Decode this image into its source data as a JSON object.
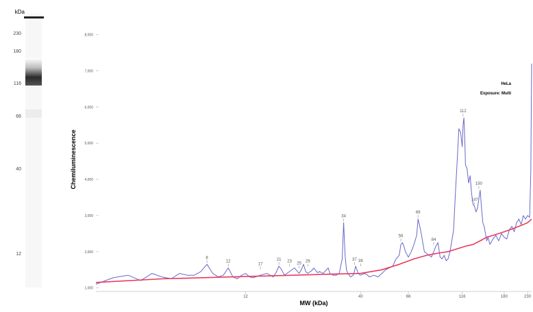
{
  "lane": {
    "unit": "kDa",
    "markers": [
      {
        "label": "230",
        "kda": 230
      },
      {
        "label": "180",
        "kda": 180
      },
      {
        "label": "116",
        "kda": 116
      },
      {
        "label": "66",
        "kda": 66
      },
      {
        "label": "40",
        "kda": 40
      },
      {
        "label": "12",
        "kda": 12
      }
    ]
  },
  "chart_data": {
    "type": "line",
    "title": "",
    "xlabel": "MW (kDa)",
    "ylabel": "Chemiluminescence",
    "x_scale": "log",
    "xlim": [
      2.5,
      240
    ],
    "ylim": [
      900,
      8200
    ],
    "x_ticks": [
      {
        "label": "12",
        "value": 12
      },
      {
        "label": "40",
        "value": 40
      },
      {
        "label": "66",
        "value": 66
      },
      {
        "label": "116",
        "value": 116
      },
      {
        "label": "180",
        "value": 180
      },
      {
        "label": "230",
        "value": 230
      }
    ],
    "y_ticks": [
      {
        "label": "1,000",
        "value": 1000
      },
      {
        "label": "2,000",
        "value": 2000
      },
      {
        "label": "3,000",
        "value": 3000
      },
      {
        "label": "4,000",
        "value": 4000
      },
      {
        "label": "5,000",
        "value": 5000
      },
      {
        "label": "6,000",
        "value": 6000
      },
      {
        "label": "7,000",
        "value": 7000
      },
      {
        "label": "8,000",
        "value": 8000
      }
    ],
    "legend": {
      "sample": "HeLa",
      "exposure": "Exposure: Multi"
    },
    "series": [
      {
        "color": "#6666cc",
        "x": [
          2.5,
          3,
          3.5,
          4,
          4.5,
          5,
          5.5,
          6,
          6.5,
          7,
          7.5,
          8,
          8.5,
          9,
          9.5,
          10,
          10.5,
          11,
          11.5,
          12,
          12.5,
          13,
          14,
          15,
          16,
          16.5,
          17,
          17.5,
          18,
          19,
          20,
          21,
          21.5,
          22,
          22.5,
          23,
          24,
          24.5,
          25,
          25.5,
          26,
          27,
          28,
          28.5,
          29,
          30,
          31,
          32,
          33,
          33.5,
          34,
          34.5,
          35,
          36,
          37,
          37.5,
          38,
          39,
          40,
          42,
          44,
          46,
          48,
          50,
          52,
          54,
          56,
          58,
          60,
          61,
          62,
          63,
          64,
          66,
          68,
          70,
          72,
          73,
          74,
          75,
          76,
          77,
          78,
          80,
          82,
          84,
          86,
          88,
          90,
          92,
          94,
          96,
          98,
          100,
          102,
          104,
          106,
          108,
          110,
          112,
          114,
          115,
          116,
          117,
          118,
          119,
          120,
          122,
          124,
          126,
          128,
          130,
          132,
          134,
          136,
          138,
          140,
          142,
          144,
          146,
          148,
          150,
          152,
          155,
          160,
          165,
          170,
          175,
          180,
          185,
          190,
          195,
          200,
          205,
          210,
          215,
          220,
          225,
          230,
          235,
          238,
          240
        ],
        "y": [
          1100,
          1280,
          1350,
          1200,
          1400,
          1300,
          1250,
          1400,
          1350,
          1350,
          1450,
          1650,
          1400,
          1300,
          1350,
          1550,
          1300,
          1250,
          1350,
          1400,
          1300,
          1280,
          1350,
          1400,
          1300,
          1420,
          1600,
          1500,
          1350,
          1450,
          1550,
          1400,
          1500,
          1650,
          1450,
          1400,
          1480,
          1550,
          1480,
          1420,
          1450,
          1400,
          1500,
          1550,
          1400,
          1350,
          1350,
          1400,
          1800,
          2800,
          1900,
          1500,
          1400,
          1300,
          1350,
          1450,
          1600,
          1400,
          1350,
          1400,
          1300,
          1350,
          1300,
          1400,
          1500,
          1550,
          1600,
          1800,
          1900,
          2200,
          2250,
          2150,
          2000,
          1850,
          2000,
          2200,
          2450,
          2900,
          2750,
          2600,
          2400,
          2200,
          2000,
          1950,
          1900,
          1850,
          2000,
          2150,
          2250,
          1850,
          1800,
          1900,
          1750,
          1800,
          2000,
          2300,
          2600,
          3600,
          4500,
          5400,
          5300,
          5100,
          4900,
          5500,
          5700,
          5200,
          4400,
          4300,
          3900,
          4100,
          3600,
          3300,
          3250,
          3100,
          3200,
          3450,
          3700,
          3200,
          2800,
          2700,
          2500,
          2300,
          2400,
          2200,
          2350,
          2450,
          2300,
          2500,
          2400,
          2350,
          2600,
          2700,
          2550,
          2800,
          2900,
          2750,
          3000,
          2900,
          3000,
          2950,
          4200,
          7200
        ]
      },
      {
        "color": "#e83a5a",
        "x": [
          2.5,
          5,
          10,
          20,
          30,
          40,
          50,
          60,
          70,
          80,
          90,
          100,
          110,
          120,
          130,
          140,
          150,
          160,
          170,
          180,
          190,
          200,
          210,
          220,
          230,
          240
        ],
        "y": [
          1150,
          1250,
          1300,
          1350,
          1380,
          1400,
          1500,
          1650,
          1800,
          1900,
          1960,
          2000,
          2080,
          2150,
          2200,
          2300,
          2400,
          2450,
          2500,
          2550,
          2600,
          2650,
          2700,
          2750,
          2800,
          2900
        ]
      }
    ],
    "peak_labels": [
      {
        "label": "8",
        "x": 8,
        "y": 1650
      },
      {
        "label": "12",
        "x": 10,
        "y": 1550
      },
      {
        "label": "17",
        "x": 14,
        "y": 1480
      },
      {
        "label": "21",
        "x": 17,
        "y": 1600
      },
      {
        "label": "23",
        "x": 19,
        "y": 1550
      },
      {
        "label": "25",
        "x": 21,
        "y": 1500
      },
      {
        "label": "29",
        "x": 23,
        "y": 1550
      },
      {
        "label": "34",
        "x": 33.5,
        "y": 2800
      },
      {
        "label": "37",
        "x": 37.5,
        "y": 1600
      },
      {
        "label": "39",
        "x": 40,
        "y": 1560
      },
      {
        "label": "56",
        "x": 61,
        "y": 2250
      },
      {
        "label": "69",
        "x": 73,
        "y": 2900
      },
      {
        "label": "84",
        "x": 86,
        "y": 2150
      },
      {
        "label": "112",
        "x": 117,
        "y": 5700
      },
      {
        "label": "147",
        "x": 132,
        "y": 3250
      },
      {
        "label": "150",
        "x": 138,
        "y": 3700
      }
    ]
  }
}
